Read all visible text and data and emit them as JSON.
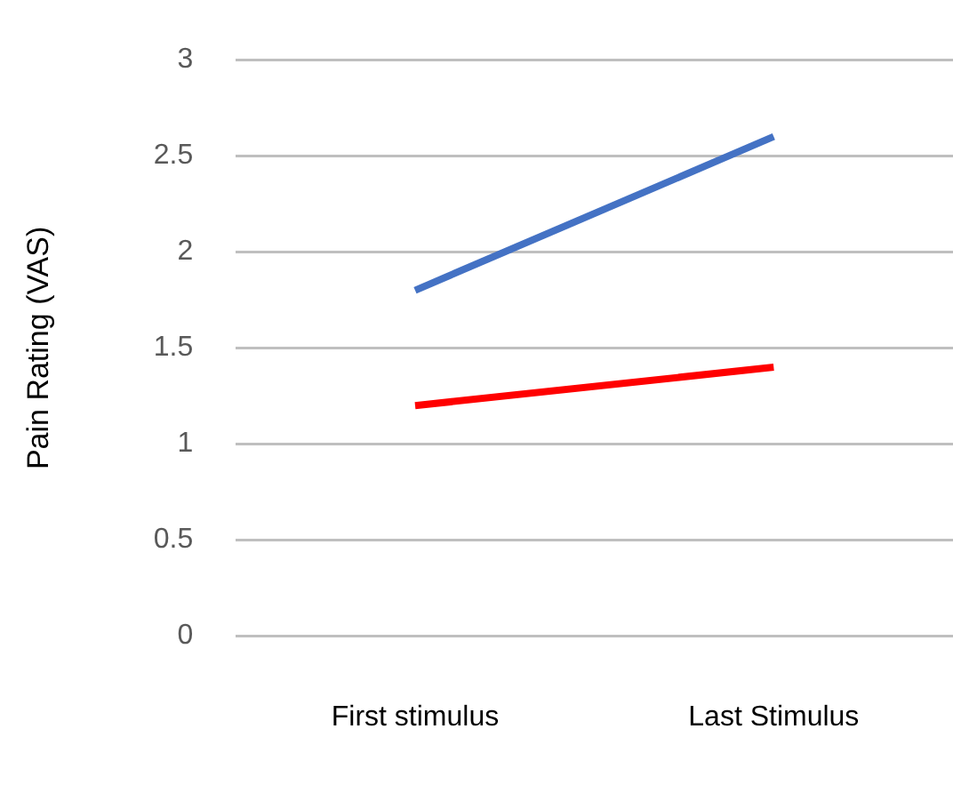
{
  "chart_data": {
    "type": "line",
    "ylabel": "Pain Rating (VAS)",
    "categories": [
      "First stimulus",
      "Last Stimulus"
    ],
    "series": [
      {
        "color": "#4472c4",
        "values": [
          1.8,
          2.6
        ]
      },
      {
        "color": "#ff0000",
        "values": [
          1.2,
          1.4
        ]
      }
    ],
    "ylim": [
      0,
      3
    ],
    "yticks": [
      0,
      0.5,
      1,
      1.5,
      2,
      2.5,
      3
    ],
    "grid": "y",
    "legend": false,
    "marker": "none",
    "line_style": "solid"
  }
}
